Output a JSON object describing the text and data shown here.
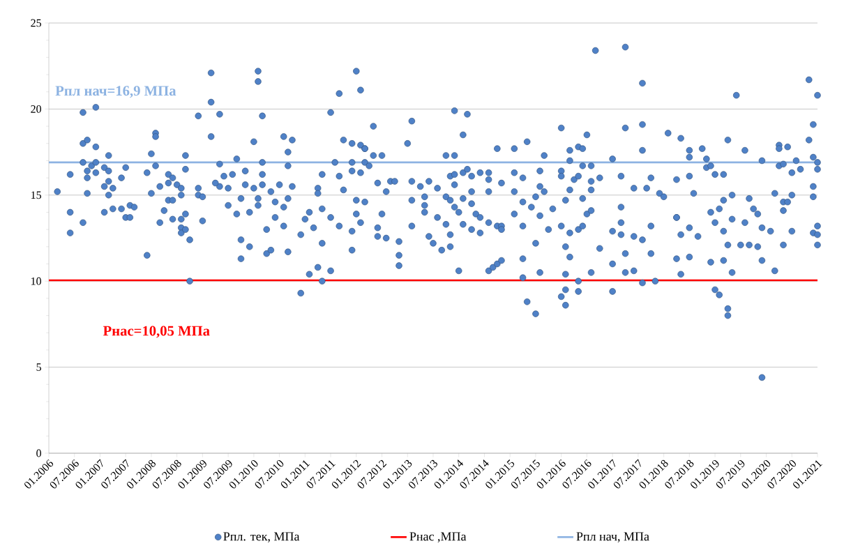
{
  "chart_data": {
    "type": "scatter",
    "xlim": [
      "2006-01",
      "2021-01"
    ],
    "ylim": [
      0,
      25
    ],
    "yticks": [
      0,
      5,
      10,
      15,
      20,
      25
    ],
    "xticks": [
      {
        "value": "2006-01",
        "label": "01.2006"
      },
      {
        "value": "2006-07",
        "label": "07.2006"
      },
      {
        "value": "2007-01",
        "label": "01.2007"
      },
      {
        "value": "2007-07",
        "label": "07.2007"
      },
      {
        "value": "2008-01",
        "label": "01.2008"
      },
      {
        "value": "2008-07",
        "label": "07.2008"
      },
      {
        "value": "2009-01",
        "label": "01.2009"
      },
      {
        "value": "2009-07",
        "label": "07.2009"
      },
      {
        "value": "2010-01",
        "label": "01.2010"
      },
      {
        "value": "2010-07",
        "label": "07.2010"
      },
      {
        "value": "2011-01",
        "label": "01.2011"
      },
      {
        "value": "2011-07",
        "label": "07.2011"
      },
      {
        "value": "2012-01",
        "label": "01.2012"
      },
      {
        "value": "2012-07",
        "label": "07.2012"
      },
      {
        "value": "2013-01",
        "label": "01.2013"
      },
      {
        "value": "2013-07",
        "label": "07.2013"
      },
      {
        "value": "2014-01",
        "label": "01.2014"
      },
      {
        "value": "2014-07",
        "label": "07.2014"
      },
      {
        "value": "2015-01",
        "label": "01.2015"
      },
      {
        "value": "2015-07",
        "label": "07.2015"
      },
      {
        "value": "2016-01",
        "label": "01.2016"
      },
      {
        "value": "2016-07",
        "label": "07.2016"
      },
      {
        "value": "2017-01",
        "label": "01.2017"
      },
      {
        "value": "2017-07",
        "label": "07.2017"
      },
      {
        "value": "2018-01",
        "label": "01.2018"
      },
      {
        "value": "2018-07",
        "label": "07.2018"
      },
      {
        "value": "2019-01",
        "label": "01.2019"
      },
      {
        "value": "2019-07",
        "label": "07.2019"
      },
      {
        "value": "2020-01",
        "label": "01.2020"
      },
      {
        "value": "2020-07",
        "label": "07.2020"
      },
      {
        "value": "2021-01",
        "label": "01.2021"
      }
    ],
    "grid": "y",
    "legend": "bottom",
    "marker": "circle",
    "annotations": [
      "Рпл нач=16,9 МПа",
      "Рнас=10,05 МПа"
    ],
    "series": [
      {
        "name": "Рпл. тек, МПа",
        "type": "scatter",
        "color": "#4f81c7",
        "x": [
          "2006-03",
          "2006-06",
          "2006-06",
          "2006-06",
          "2006-09",
          "2006-09",
          "2006-09",
          "2006-09",
          "2006-10",
          "2006-10",
          "2006-10",
          "2006-10",
          "2006-12",
          "2006-12",
          "2006-11",
          "2006-12",
          "2006-12",
          "2007-02",
          "2007-02",
          "2007-02",
          "2007-03",
          "2007-03",
          "2007-03",
          "2007-03",
          "2007-04",
          "2007-04",
          "2007-06",
          "2007-06",
          "2007-07",
          "2007-07",
          "2007-08",
          "2007-08",
          "2007-09",
          "2007-12",
          "2007-12",
          "2008-01",
          "2008-01",
          "2008-02",
          "2008-02",
          "2008-02",
          "2008-03",
          "2008-03",
          "2008-04",
          "2008-05",
          "2008-05",
          "2008-05",
          "2008-06",
          "2008-06",
          "2008-06",
          "2008-07",
          "2008-08",
          "2008-08",
          "2008-08",
          "2008-08",
          "2008-08",
          "2008-09",
          "2008-09",
          "2008-09",
          "2008-09",
          "2008-10",
          "2008-10",
          "2008-12",
          "2008-12",
          "2008-12",
          "2009-01",
          "2009-01",
          "2009-03",
          "2009-03",
          "2009-03",
          "2009-05",
          "2009-05",
          "2009-06",
          "2009-05",
          "2009-04",
          "2009-07",
          "2009-07",
          "2009-08",
          "2009-09",
          "2009-09",
          "2009-10",
          "2009-10",
          "2009-10",
          "2009-11",
          "2009-11",
          "2009-12",
          "2009-12",
          "2010-01",
          "2010-01",
          "2010-02",
          "2010-02",
          "2010-03",
          "2010-03",
          "2010-03",
          "2010-03",
          "2010-02",
          "2010-02",
          "2010-04",
          "2010-04",
          "2010-05",
          "2010-05",
          "2010-06",
          "2010-06",
          "2010-07",
          "2010-08",
          "2010-08",
          "2010-08",
          "2010-09",
          "2010-09",
          "2010-09",
          "2010-09",
          "2010-10",
          "2010-10",
          "2010-12",
          "2010-12",
          "2011-01",
          "2011-02",
          "2011-02",
          "2011-03",
          "2011-04",
          "2011-04",
          "2011-04",
          "2011-05",
          "2011-05",
          "2011-05",
          "2011-05",
          "2011-07",
          "2011-07",
          "2011-07",
          "2011-08",
          "2011-09",
          "2011-09",
          "2011-09",
          "2011-10",
          "2011-10",
          "2011-12",
          "2011-12",
          "2011-12",
          "2011-12",
          "2011-12",
          "2012-01",
          "2012-01",
          "2012-01",
          "2012-02",
          "2012-02",
          "2012-02",
          "2012-02",
          "2012-03",
          "2012-03",
          "2012-03",
          "2012-05",
          "2012-05",
          "2012-04",
          "2012-03",
          "2012-06",
          "2012-06",
          "2012-06",
          "2012-07",
          "2012-07",
          "2012-08",
          "2012-08",
          "2012-09",
          "2012-10",
          "2012-11",
          "2012-11",
          "2012-11",
          "2013-01",
          "2013-02",
          "2013-02",
          "2013-02",
          "2013-02",
          "2013-04",
          "2013-05",
          "2013-05",
          "2013-05",
          "2013-06",
          "2013-06",
          "2013-07",
          "2013-08",
          "2013-08",
          "2013-09",
          "2013-10",
          "2013-10",
          "2013-10",
          "2013-11",
          "2013-11",
          "2013-11",
          "2013-11",
          "2013-12",
          "2013-12",
          "2013-12",
          "2013-12",
          "2013-12",
          "2014-01",
          "2014-01",
          "2014-02",
          "2014-02",
          "2014-02",
          "2014-02",
          "2014-03",
          "2014-03",
          "2014-04",
          "2014-04",
          "2014-04",
          "2014-04",
          "2014-05",
          "2014-06",
          "2014-06",
          "2014-06",
          "2014-08",
          "2014-08",
          "2014-08",
          "2014-08",
          "2014-08",
          "2014-09",
          "2014-10",
          "2014-10",
          "2014-10",
          "2014-11",
          "2014-11",
          "2014-11",
          "2014-11",
          "2015-02",
          "2015-02",
          "2015-02",
          "2015-02",
          "2015-04",
          "2015-04",
          "2015-04",
          "2015-04",
          "2015-04",
          "2015-05",
          "2015-05",
          "2015-07",
          "2015-06",
          "2015-07",
          "2015-07",
          "2015-08",
          "2015-08",
          "2015-08",
          "2015-08",
          "2015-09",
          "2015-09",
          "2015-10",
          "2015-11",
          "2016-01",
          "2016-01",
          "2016-01",
          "2016-01",
          "2016-01",
          "2016-02",
          "2016-02",
          "2016-02",
          "2016-02",
          "2016-02",
          "2016-03",
          "2016-03",
          "2016-03",
          "2016-03",
          "2016-03",
          "2016-04",
          "2016-05",
          "2016-05",
          "2016-05",
          "2016-05",
          "2016-05",
          "2016-06",
          "2016-06",
          "2016-06",
          "2016-06",
          "2016-07",
          "2016-07",
          "2016-08",
          "2016-08",
          "2016-08",
          "2016-08",
          "2016-08",
          "2016-09",
          "2016-10",
          "2016-10",
          "2017-01",
          "2017-01",
          "2017-01",
          "2017-01",
          "2017-03",
          "2017-03",
          "2017-03",
          "2017-03",
          "2017-04",
          "2017-04",
          "2017-04",
          "2017-04",
          "2017-06",
          "2017-06",
          "2017-06",
          "2017-08",
          "2017-08",
          "2017-08",
          "2017-08",
          "2017-08",
          "2017-09",
          "2017-10",
          "2017-10",
          "2017-10",
          "2017-11",
          "2017-12",
          "2018-01",
          "2018-02",
          "2018-04",
          "2018-04",
          "2018-05",
          "2018-04",
          "2018-04",
          "2018-05",
          "2018-05",
          "2018-07",
          "2018-07",
          "2018-07",
          "2018-07",
          "2018-07",
          "2018-08",
          "2018-09",
          "2018-10",
          "2018-11",
          "2018-11",
          "2018-12",
          "2018-12",
          "2018-12",
          "2019-01",
          "2019-01",
          "2019-01",
          "2019-02",
          "2019-02",
          "2019-03",
          "2019-03",
          "2019-03",
          "2019-03",
          "2019-04",
          "2019-04",
          "2019-04",
          "2019-04",
          "2019-05",
          "2019-05",
          "2019-05",
          "2019-06",
          "2019-07",
          "2019-08",
          "2019-08",
          "2019-09",
          "2019-09",
          "2019-10",
          "2019-11",
          "2019-11",
          "2019-12",
          "2019-12",
          "2019-12",
          "2019-12",
          "2020-02",
          "2020-03",
          "2020-03",
          "2020-04",
          "2020-04",
          "2020-04",
          "2020-05",
          "2020-05",
          "2020-05",
          "2020-05",
          "2020-06",
          "2020-06",
          "2020-07",
          "2020-07",
          "2020-07",
          "2020-08",
          "2020-09",
          "2020-11",
          "2020-11",
          "2020-12",
          "2020-12",
          "2020-12",
          "2020-12",
          "2020-12",
          "2021-01",
          "2021-01",
          "2021-01",
          "2021-01",
          "2021-01",
          "2021-01"
        ],
        "values": [
          15.2,
          16.2,
          14.0,
          12.8,
          19.8,
          18.0,
          16.9,
          13.4,
          18.2,
          16.4,
          16.0,
          15.1,
          20.1,
          17.8,
          16.7,
          16.9,
          16.3,
          16.6,
          15.5,
          14.0,
          15.0,
          17.3,
          16.4,
          15.8,
          15.4,
          14.2,
          16.0,
          14.2,
          16.6,
          13.7,
          14.4,
          13.7,
          14.3,
          11.5,
          16.3,
          17.4,
          15.1,
          18.6,
          18.4,
          16.7,
          15.5,
          13.4,
          14.1,
          16.2,
          15.7,
          14.7,
          16.0,
          14.7,
          13.6,
          15.6,
          15.4,
          15.0,
          13.6,
          13.1,
          12.8,
          17.3,
          16.5,
          13.9,
          13.0,
          12.4,
          10.0,
          19.6,
          15.4,
          15.0,
          14.9,
          13.5,
          22.1,
          20.4,
          18.4,
          19.7,
          16.8,
          16.1,
          15.5,
          15.7,
          15.4,
          14.4,
          16.2,
          17.1,
          13.9,
          14.8,
          12.4,
          11.3,
          16.4,
          15.6,
          14.0,
          12.0,
          18.1,
          15.4,
          22.2,
          21.6,
          19.6,
          16.9,
          16.2,
          15.6,
          14.8,
          14.4,
          13.0,
          11.6,
          15.2,
          11.8,
          14.6,
          13.7,
          15.6,
          18.4,
          14.3,
          13.2,
          17.5,
          16.7,
          14.8,
          11.7,
          18.2,
          15.5,
          12.7,
          9.3,
          13.6,
          10.4,
          14.0,
          13.1,
          10.8,
          15.4,
          15.1,
          12.2,
          10.0,
          14.2,
          16.2,
          19.8,
          10.6,
          13.7,
          16.9,
          20.9,
          16.1,
          13.2,
          18.2,
          15.3,
          18.0,
          16.9,
          16.4,
          12.9,
          11.8,
          22.2,
          14.7,
          13.9,
          21.1,
          17.9,
          16.3,
          13.4,
          17.7,
          16.9,
          14.6,
          19.0,
          17.3,
          16.7,
          17.7,
          15.7,
          13.1,
          12.6,
          17.3,
          13.9,
          15.2,
          12.5,
          15.8,
          15.8,
          12.3,
          11.5,
          10.9,
          18.0,
          19.3,
          15.8,
          14.7,
          13.2,
          15.5,
          14.9,
          14.4,
          14.0,
          15.8,
          12.6,
          12.2,
          15.4,
          13.7,
          11.8,
          17.3,
          14.9,
          13.3,
          16.1,
          14.7,
          12.7,
          12.0,
          19.9,
          17.3,
          16.2,
          15.6,
          14.3,
          14.0,
          10.6,
          18.5,
          16.3,
          14.8,
          13.3,
          19.7,
          16.5,
          16.1,
          15.2,
          14.5,
          13.0,
          13.9,
          16.3,
          13.7,
          12.8,
          16.3,
          15.9,
          15.2,
          13.4,
          10.6,
          10.8,
          17.7,
          11.0,
          13.2,
          13.2,
          13.0,
          11.2,
          15.7,
          17.7,
          16.3,
          15.2,
          13.9,
          16.0,
          14.6,
          13.2,
          11.3,
          10.2,
          8.8,
          18.1,
          14.9,
          14.3,
          12.2,
          8.1,
          16.4,
          15.5,
          13.8,
          10.5,
          17.3,
          15.2,
          13.0,
          14.2,
          16.4,
          16.1,
          18.9,
          13.2,
          9.1,
          14.7,
          12.0,
          10.4,
          9.5,
          8.6,
          17.6,
          17.0,
          15.3,
          12.8,
          11.4,
          15.9,
          17.8,
          16.1,
          13.0,
          10.0,
          9.4,
          17.7,
          16.7,
          14.8,
          13.2,
          18.5,
          13.9,
          16.7,
          15.8,
          15.3,
          14.1,
          10.5,
          23.4,
          16.0,
          11.9,
          17.1,
          12.9,
          11.0,
          9.4,
          16.1,
          14.3,
          13.4,
          12.7,
          23.6,
          18.9,
          11.6,
          10.5,
          15.4,
          12.6,
          10.6,
          21.5,
          19.1,
          17.6,
          12.4,
          9.9,
          15.4,
          11.6,
          13.2,
          16.0,
          10.0,
          15.1,
          14.9,
          18.6,
          13.7,
          11.3,
          18.3,
          15.9,
          13.7,
          12.7,
          10.4,
          17.6,
          17.2,
          16.1,
          13.1,
          11.4,
          15.1,
          12.6,
          17.7,
          17.1,
          16.6,
          16.7,
          14.0,
          11.1,
          16.2,
          13.4,
          9.5,
          14.2,
          9.2,
          16.2,
          14.7,
          12.9,
          11.2,
          18.2,
          12.1,
          8.4,
          8.0,
          15.0,
          13.6,
          10.5,
          20.8,
          12.1,
          17.6,
          13.4,
          14.8,
          12.1,
          14.2,
          13.9,
          12.0,
          17.0,
          13.1,
          11.2,
          4.4,
          12.9,
          15.1,
          10.6,
          17.9,
          17.7,
          16.7,
          16.8,
          14.6,
          14.1,
          12.1,
          17.8,
          14.6,
          16.3,
          15.0,
          12.9,
          17.0,
          16.5,
          21.7,
          18.2,
          19.1,
          17.2,
          15.5,
          14.9,
          12.8,
          20.8,
          16.9,
          16.5,
          13.2,
          12.7,
          12.1
        ]
      },
      {
        "name": "Рнас ,МПа",
        "type": "line",
        "marker": "none",
        "color": "#ff0000",
        "x": [
          "2006-01",
          "2021-01"
        ],
        "values": [
          10.05,
          10.05
        ]
      },
      {
        "name": "Рпл нач, МПа",
        "type": "line",
        "marker": "none",
        "color": "#8db3e2",
        "x": [
          "2006-01",
          "2021-01"
        ],
        "values": [
          16.9,
          16.9
        ]
      }
    ]
  }
}
